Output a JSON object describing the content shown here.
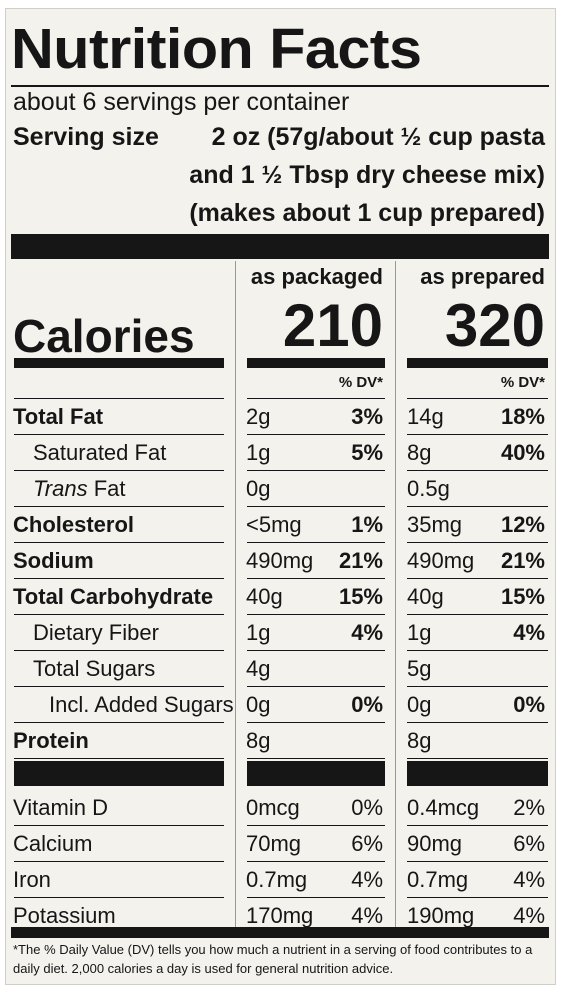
{
  "title": "Nutrition Facts",
  "servings": "about 6 servings per container",
  "serving_size": {
    "label": "Serving size",
    "lines": [
      "2 oz (57g/about ½ cup pasta",
      "and 1 ½ Tbsp dry cheese mix)",
      "(makes about 1 cup prepared)"
    ]
  },
  "columns": {
    "packaged": {
      "header": "as packaged",
      "calories": "210"
    },
    "prepared": {
      "header": "as prepared",
      "calories": "320"
    },
    "dv_header": "% DV*"
  },
  "calories_label": "Calories",
  "nutrients": [
    {
      "name": "Total Fat",
      "packaged": {
        "amount": "2g",
        "dv": "3%"
      },
      "prepared": {
        "amount": "14g",
        "dv": "18%"
      }
    },
    {
      "name": "Saturated Fat",
      "packaged": {
        "amount": "1g",
        "dv": "5%"
      },
      "prepared": {
        "amount": "8g",
        "dv": "40%"
      }
    },
    {
      "name_italic": "Trans",
      "name": " Fat",
      "packaged": {
        "amount": "0g",
        "dv": ""
      },
      "prepared": {
        "amount": "0.5g",
        "dv": ""
      }
    },
    {
      "name": "Cholesterol",
      "packaged": {
        "amount": "<5mg",
        "dv": "1%"
      },
      "prepared": {
        "amount": "35mg",
        "dv": "12%"
      }
    },
    {
      "name": "Sodium",
      "packaged": {
        "amount": "490mg",
        "dv": "21%"
      },
      "prepared": {
        "amount": "490mg",
        "dv": "21%"
      }
    },
    {
      "name": "Total Carbohydrate",
      "packaged": {
        "amount": "40g",
        "dv": "15%"
      },
      "prepared": {
        "amount": "40g",
        "dv": "15%"
      }
    },
    {
      "name": "Dietary Fiber",
      "packaged": {
        "amount": "1g",
        "dv": "4%"
      },
      "prepared": {
        "amount": "1g",
        "dv": "4%"
      }
    },
    {
      "name": "Total Sugars",
      "packaged": {
        "amount": "4g",
        "dv": ""
      },
      "prepared": {
        "amount": "5g",
        "dv": ""
      }
    },
    {
      "name": "Incl. Added Sugars",
      "packaged": {
        "amount": "0g",
        "dv": "0%"
      },
      "prepared": {
        "amount": "0g",
        "dv": "0%"
      }
    },
    {
      "name": "Protein",
      "packaged": {
        "amount": "8g",
        "dv": ""
      },
      "prepared": {
        "amount": "8g",
        "dv": ""
      }
    }
  ],
  "vitamins": [
    {
      "name": "Vitamin D",
      "packaged": {
        "amount": "0mcg",
        "dv": "0%"
      },
      "prepared": {
        "amount": "0.4mcg",
        "dv": "2%"
      }
    },
    {
      "name": "Calcium",
      "packaged": {
        "amount": "70mg",
        "dv": "6%"
      },
      "prepared": {
        "amount": "90mg",
        "dv": "6%"
      }
    },
    {
      "name": "Iron",
      "packaged": {
        "amount": "0.7mg",
        "dv": "4%"
      },
      "prepared": {
        "amount": "0.7mg",
        "dv": "4%"
      }
    },
    {
      "name": "Potassium",
      "packaged": {
        "amount": "170mg",
        "dv": "4%"
      },
      "prepared": {
        "amount": "190mg",
        "dv": "4%"
      }
    }
  ],
  "footnote": "*The % Daily Value (DV) tells you how much a nutrient in a serving of food contributes to a daily diet. 2,000 calories a day is used for general nutrition advice."
}
